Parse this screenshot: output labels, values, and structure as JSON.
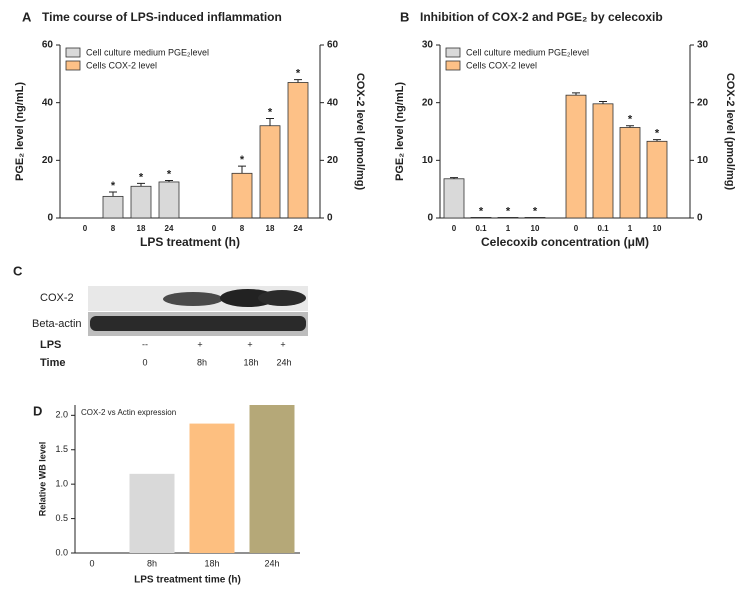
{
  "chart_data": [
    {
      "type": "bar",
      "panel_label": "A",
      "title": "Time course of LPS-induced inflammation",
      "x_label": "LPS treatment (h)",
      "y_label": "PGE₂ level (ng/mL)",
      "y2_label": "COX-2 level (pmol/mg)",
      "categories": [
        "0",
        "8",
        "18",
        "24",
        "0",
        "8",
        "18",
        "24"
      ],
      "series": [
        {
          "name": "Cell culture medium PGE₂level",
          "color": "#d9d9d9",
          "axis": "y",
          "values": [
            0,
            7.5,
            11,
            12.5,
            null,
            null,
            null,
            null
          ],
          "errors": [
            null,
            1.5,
            1,
            0.5,
            null,
            null,
            null,
            null
          ],
          "significance": [
            null,
            "*",
            "*",
            "*",
            null,
            null,
            null,
            null
          ]
        },
        {
          "name": "Cells COX-2 level",
          "color": "#fdc187",
          "axis": "y2",
          "values": [
            null,
            null,
            null,
            null,
            0,
            15.5,
            32,
            47
          ],
          "errors": [
            null,
            null,
            null,
            null,
            null,
            2.5,
            2.5,
            1
          ],
          "significance": [
            null,
            null,
            null,
            null,
            null,
            "*",
            "*",
            "*"
          ]
        }
      ],
      "ylim": [
        0,
        60
      ],
      "yticks": [
        0,
        20,
        40,
        60
      ],
      "y2lim": [
        0,
        60
      ],
      "y2ticks": [
        0,
        20,
        40,
        60
      ],
      "legend": "upper left"
    },
    {
      "type": "bar",
      "panel_label": "B",
      "title": "Inhibition of COX-2 and PGE₂ by celecoxib",
      "x_label": "Celecoxib concentration (μM)",
      "y_label": "PGE₂ level (ng/mL)",
      "y2_label": "COX-2 level (pmol/mg)",
      "categories": [
        "0",
        "0.1",
        "1",
        "10",
        "0",
        "0.1",
        "1",
        "10"
      ],
      "series": [
        {
          "name": "Cell culture medium PGE₂level",
          "color": "#d9d9d9",
          "axis": "y",
          "values": [
            6.8,
            0.1,
            0.1,
            0.1,
            null,
            null,
            null,
            null
          ],
          "errors": [
            0.2,
            null,
            null,
            null,
            null,
            null,
            null,
            null
          ],
          "significance": [
            null,
            "*",
            "*",
            "*",
            null,
            null,
            null,
            null
          ]
        },
        {
          "name": "Cells COX-2 level",
          "color": "#fdc187",
          "axis": "y2",
          "values": [
            null,
            null,
            null,
            null,
            21.3,
            19.8,
            15.7,
            13.3
          ],
          "errors": [
            null,
            null,
            null,
            null,
            0.4,
            0.4,
            0.3,
            0.3
          ],
          "significance": [
            null,
            null,
            null,
            null,
            null,
            null,
            "*",
            "*"
          ]
        }
      ],
      "ylim": [
        0,
        30
      ],
      "yticks": [
        0,
        10,
        20,
        30
      ],
      "y2lim": [
        0,
        30
      ],
      "y2ticks": [
        0,
        10,
        20,
        30
      ],
      "legend": "upper left"
    },
    {
      "type": "bar",
      "panel_label": "D",
      "title": "COX-2 vs Actin expression",
      "x_label": "LPS treatment time (h)",
      "y_label": "Relative WB level",
      "categories": [
        "0",
        "8h",
        "18h",
        "24h"
      ],
      "values": [
        0,
        1.15,
        1.88,
        2.15
      ],
      "colors": [
        "#d9d9d9",
        "#d9d9d9",
        "#fdbf80",
        "#b5a878"
      ],
      "ylim": [
        0,
        2.15
      ],
      "yticks": [
        {
          "value": 0,
          "label": "0.0"
        },
        {
          "value": 0.5,
          "label": "0.5"
        },
        {
          "value": 1,
          "label": "1.0"
        },
        {
          "value": 1.5,
          "label": "1.5"
        },
        {
          "value": 2,
          "label": "2.0"
        }
      ]
    }
  ],
  "blot": {
    "panel_label": "C",
    "rows": [
      "COX-2",
      "Beta-actin"
    ],
    "lps": {
      "label": "LPS",
      "lanes": [
        "--",
        "+",
        "+",
        "+"
      ]
    },
    "time": {
      "label": "Time",
      "lanes": [
        "0",
        "8h",
        "18h",
        "24h"
      ]
    }
  }
}
